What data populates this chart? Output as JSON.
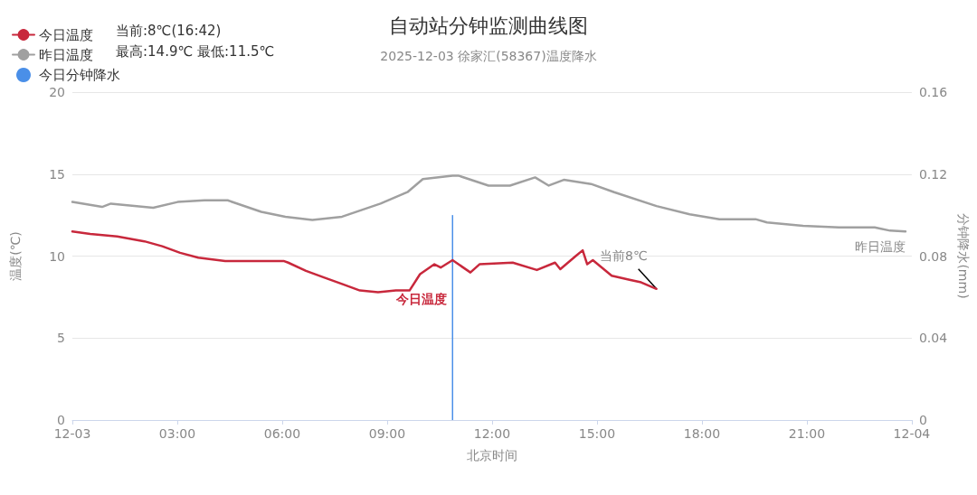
{
  "chart_data": {
    "type": "line",
    "title": "自动站分钟监测曲线图",
    "subtitle": "2025-12-03 徐家汇(58367)温度降水",
    "xlabel": "北京时间",
    "ylabel": "温度(℃)",
    "y2label": "分钟降水(mm)",
    "xlim": [
      0,
      24
    ],
    "xticks": [
      {
        "value": 0,
        "label": "12-03"
      },
      {
        "value": 3,
        "label": "03:00"
      },
      {
        "value": 6,
        "label": "06:00"
      },
      {
        "value": 9,
        "label": "09:00"
      },
      {
        "value": 12,
        "label": "12:00"
      },
      {
        "value": 15,
        "label": "15:00"
      },
      {
        "value": 18,
        "label": "18:00"
      },
      {
        "value": 21,
        "label": "21:00"
      },
      {
        "value": 24,
        "label": "12-04"
      }
    ],
    "ylim": [
      0,
      20
    ],
    "yticks": [
      0,
      5,
      10,
      15,
      20
    ],
    "y2lim": [
      0,
      0.16
    ],
    "y2ticks": [
      0,
      0.04,
      0.08,
      0.12,
      0.16
    ],
    "grid": "y",
    "legend": "top left",
    "series": [
      {
        "name": "今日温度",
        "color": "#c8283c",
        "x": [
          0,
          0.51,
          1.28,
          2.06,
          2.57,
          3.08,
          3.6,
          4.37,
          6.04,
          6.17,
          6.68,
          7.19,
          7.71,
          8.22,
          8.74,
          9.25,
          9.64,
          9.94,
          10.35,
          10.53,
          10.87,
          11.38,
          11.64,
          12.59,
          13.28,
          13.8,
          13.95,
          14.39,
          14.59,
          14.72,
          14.88,
          15.42,
          15.93,
          16.26,
          16.7
        ],
        "values": [
          11.5,
          11.35,
          11.2,
          10.9,
          10.6,
          10.2,
          9.9,
          9.7,
          9.7,
          9.6,
          9.1,
          8.7,
          8.3,
          7.9,
          7.8,
          7.9,
          7.9,
          8.9,
          9.5,
          9.3,
          9.75,
          9.0,
          9.5,
          9.6,
          9.15,
          9.6,
          9.2,
          10.0,
          10.35,
          9.5,
          9.75,
          8.8,
          8.55,
          8.4,
          8.0
        ]
      },
      {
        "name": "昨日温度",
        "color": "#a0a0a0",
        "x": [
          0,
          0.85,
          1.1,
          2.31,
          3.01,
          3.78,
          4.44,
          5.4,
          6.09,
          6.86,
          7.71,
          8.81,
          9.58,
          10.02,
          10.87,
          11.05,
          11.9,
          12.51,
          13.23,
          13.62,
          14.05,
          14.83,
          15.49,
          16.7,
          17.65,
          18.5,
          19.53,
          19.86,
          20.89,
          21.92,
          22.94,
          23.38,
          23.82
        ],
        "values": [
          13.3,
          13.0,
          13.2,
          12.95,
          13.3,
          13.4,
          13.4,
          12.7,
          12.4,
          12.2,
          12.4,
          13.2,
          13.9,
          14.7,
          14.9,
          14.9,
          14.3,
          14.3,
          14.8,
          14.3,
          14.65,
          14.4,
          13.9,
          13.05,
          12.55,
          12.25,
          12.25,
          12.05,
          11.85,
          11.75,
          11.75,
          11.55,
          11.5
        ]
      },
      {
        "name": "今日分钟降水",
        "type": "bar",
        "axis": "y2",
        "color": "#4a8fe8",
        "x": [
          10.87
        ],
        "values": [
          0.1
        ]
      }
    ],
    "annotations": [
      "当前:8℃(16:42)",
      "最高:14.9℃ 最低:11.5℃",
      {
        "text": "当前8℃",
        "x": 16.7,
        "y": 8
      },
      "今日温度",
      "昨日温度"
    ]
  }
}
